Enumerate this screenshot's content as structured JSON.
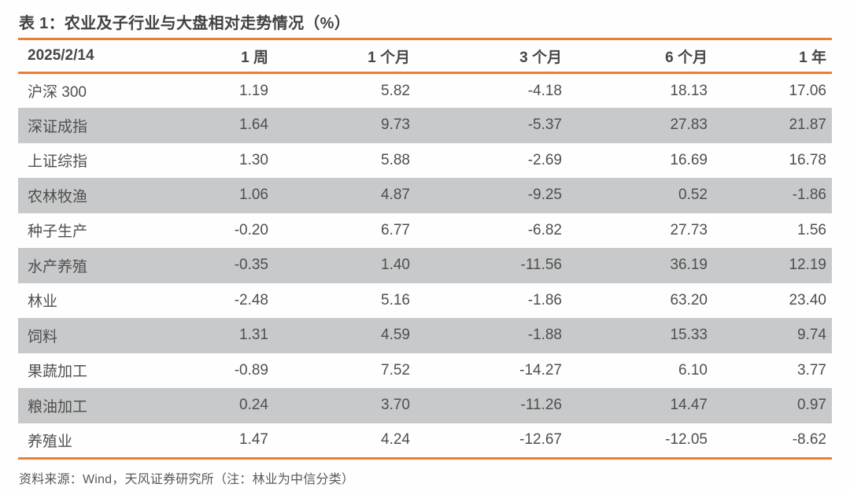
{
  "title": "表 1：农业及子行业与大盘相对走势情况（%）",
  "colors": {
    "accent_orange": "#ED7D31",
    "row_alt_gray": "#C8C9CA"
  },
  "table": {
    "columns": [
      "2025/2/14",
      "1 周",
      "1 个月",
      "3 个月",
      "6 个月",
      "1 年"
    ],
    "rows": [
      {
        "label": "沪深 300",
        "values": [
          "1.19",
          "5.82",
          "-4.18",
          "18.13",
          "17.06"
        ]
      },
      {
        "label": "深证成指",
        "values": [
          "1.64",
          "9.73",
          "-5.37",
          "27.83",
          "21.87"
        ]
      },
      {
        "label": "上证综指",
        "values": [
          "1.30",
          "5.88",
          "-2.69",
          "16.69",
          "16.78"
        ]
      },
      {
        "label": "农林牧渔",
        "values": [
          "1.06",
          "4.87",
          "-9.25",
          "0.52",
          "-1.86"
        ]
      },
      {
        "label": "种子生产",
        "values": [
          "-0.20",
          "6.77",
          "-6.82",
          "27.73",
          "1.56"
        ]
      },
      {
        "label": "水产养殖",
        "values": [
          "-0.35",
          "1.40",
          "-11.56",
          "36.19",
          "12.19"
        ]
      },
      {
        "label": "林业",
        "values": [
          "-2.48",
          "5.16",
          "-1.86",
          "63.20",
          "23.40"
        ]
      },
      {
        "label": "饲料",
        "values": [
          "1.31",
          "4.59",
          "-1.88",
          "15.33",
          "9.74"
        ]
      },
      {
        "label": "果蔬加工",
        "values": [
          "-0.89",
          "7.52",
          "-14.27",
          "6.10",
          "3.77"
        ]
      },
      {
        "label": "粮油加工",
        "values": [
          "0.24",
          "3.70",
          "-11.26",
          "14.47",
          "0.97"
        ]
      },
      {
        "label": "养殖业",
        "values": [
          "1.47",
          "4.24",
          "-12.67",
          "-12.05",
          "-8.62"
        ]
      }
    ]
  },
  "footer": "资料来源：Wind，天风证券研究所（注：林业为中信分类）"
}
